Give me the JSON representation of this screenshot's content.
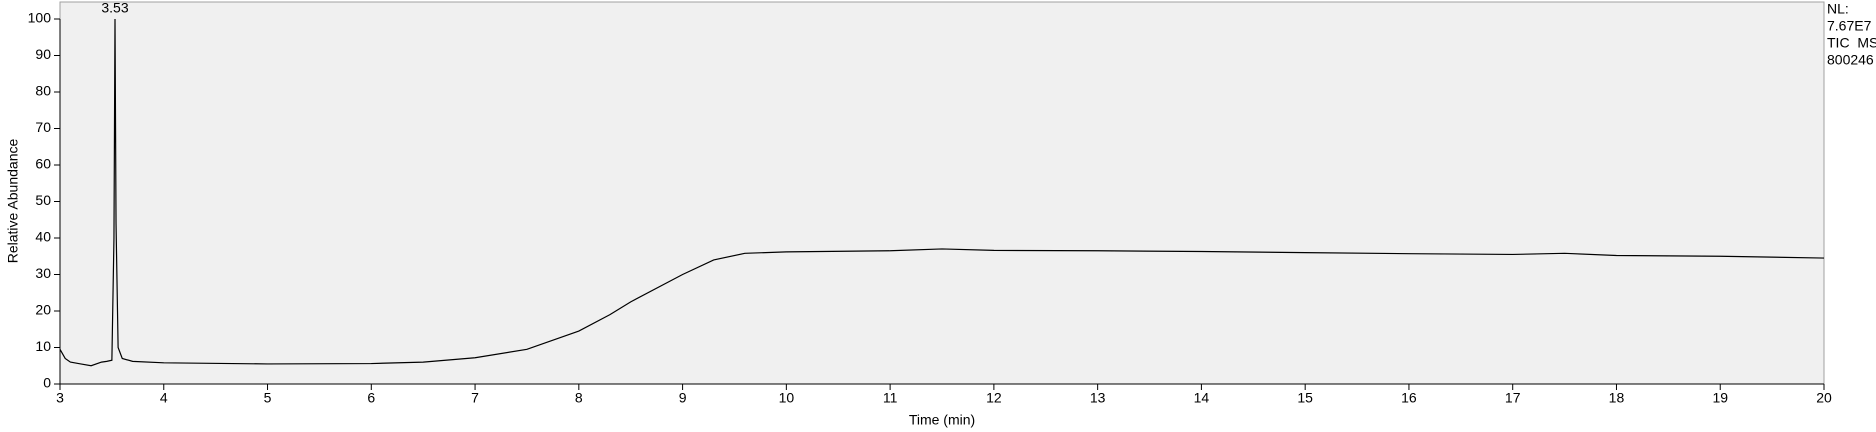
{
  "chart_data": {
    "type": "line",
    "xlabel": "Time (min)",
    "ylabel": "Relative Abundance",
    "x": [
      3.0,
      3.05,
      3.1,
      3.2,
      3.3,
      3.4,
      3.45,
      3.5,
      3.52,
      3.53,
      3.54,
      3.56,
      3.6,
      3.7,
      4.0,
      5.0,
      6.0,
      6.5,
      7.0,
      7.5,
      8.0,
      8.3,
      8.5,
      9.0,
      9.3,
      9.6,
      10.0,
      11.0,
      11.5,
      12.0,
      13.0,
      14.0,
      15.0,
      16.0,
      17.0,
      17.5,
      18.0,
      19.0,
      20.0
    ],
    "series": [
      {
        "color": "#000000",
        "values": [
          9.5,
          7,
          6,
          5.5,
          5,
          6,
          6.2,
          6.5,
          40,
          100,
          44,
          10,
          7,
          6.2,
          5.8,
          5.5,
          5.6,
          6,
          7.2,
          9.5,
          14.5,
          19,
          22.5,
          30,
          34,
          35.8,
          36.2,
          36.5,
          37,
          36.6,
          36.5,
          36.3,
          36,
          35.7,
          35.5,
          35.8,
          35.2,
          35,
          34.5
        ]
      }
    ],
    "xlim": [
      3,
      20
    ],
    "ylim": [
      0,
      100
    ],
    "xticks": [
      3,
      4,
      5,
      6,
      7,
      8,
      9,
      10,
      11,
      12,
      13,
      14,
      15,
      16,
      17,
      18,
      19,
      20
    ],
    "yticks": [
      0,
      10,
      20,
      30,
      40,
      50,
      60,
      70,
      80,
      90,
      100
    ],
    "annotations": [
      {
        "text": "3.53",
        "x": 3.53,
        "y": 100
      }
    ],
    "info": [
      "NL:",
      "7.67E7",
      "TIC  MS",
      "800246"
    ]
  }
}
